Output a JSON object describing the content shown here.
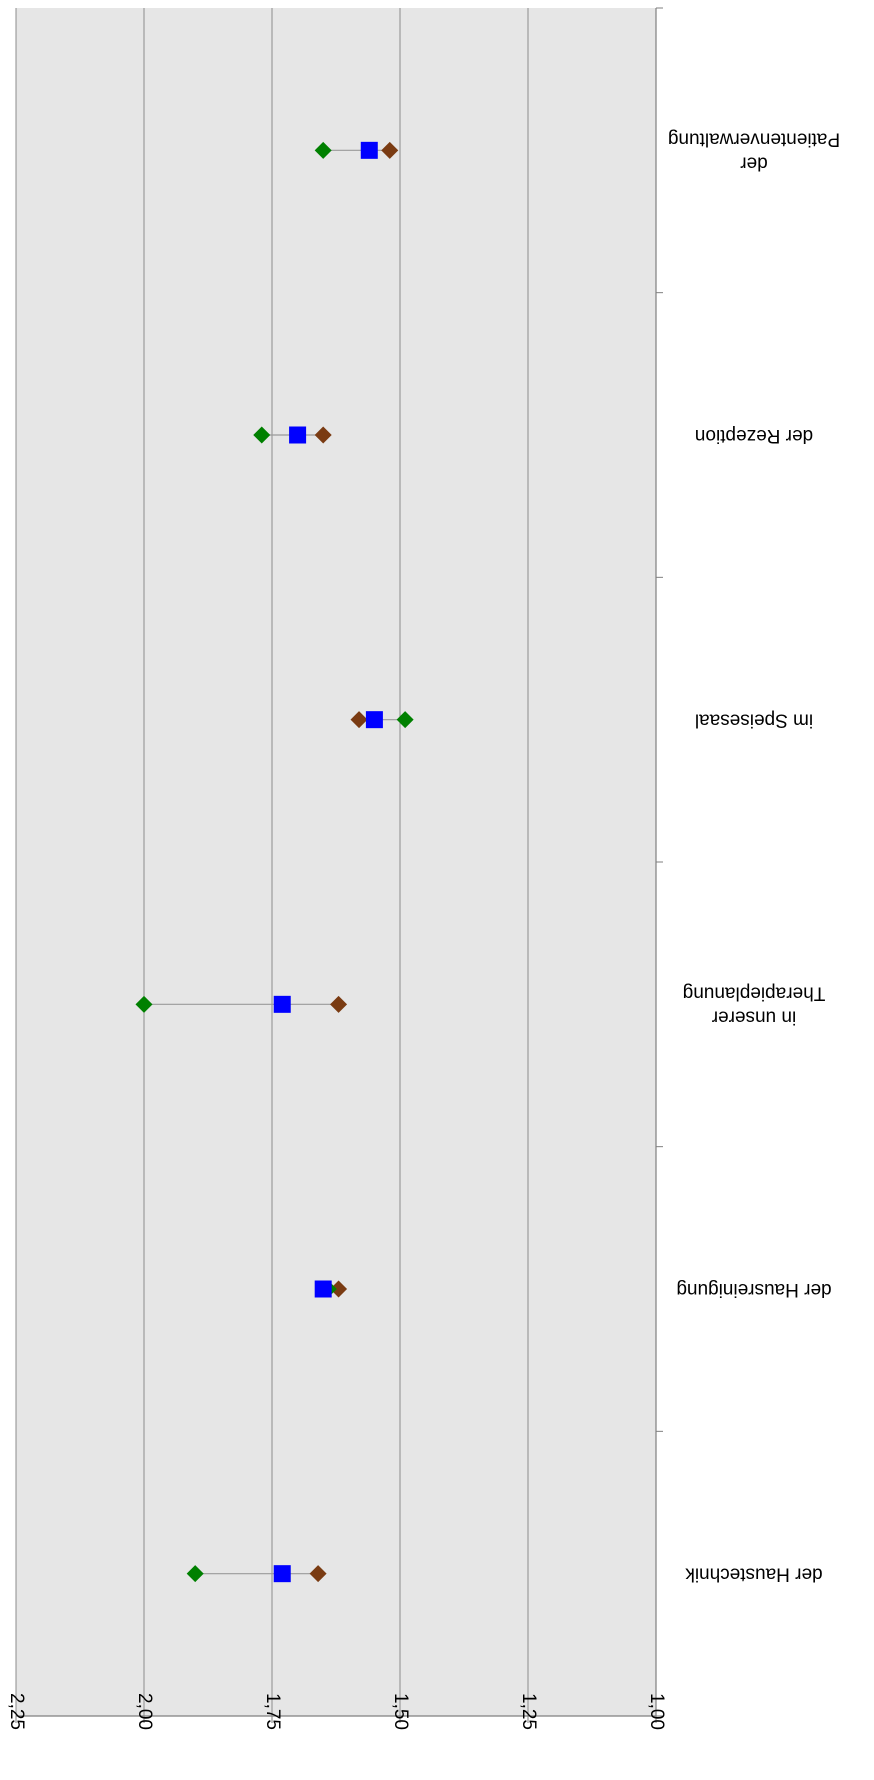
{
  "chart_data": {
    "type": "scatter",
    "orientation": "rotated-180",
    "title": "",
    "xlabel": "",
    "ylabel": "",
    "ylim": [
      1.0,
      2.25
    ],
    "grid": true,
    "y_ticks": [
      "1,00",
      "1,25",
      "1,50",
      "1,75",
      "2,00",
      "2,25"
    ],
    "y_tick_values": [
      1.0,
      1.25,
      1.5,
      1.75,
      2.0,
      2.25
    ],
    "categories": [
      [
        "der",
        "Patientenverwaltung"
      ],
      [
        "der Rezeption"
      ],
      [
        "im Speisesaal"
      ],
      [
        "in unserer",
        "Therapieplanung"
      ],
      [
        "der Hausreinigung"
      ],
      [
        "der Haustechnik"
      ]
    ],
    "series": [
      {
        "color": "#0000ff",
        "marker": "square",
        "values": [
          1.56,
          1.7,
          1.55,
          1.73,
          1.65,
          1.73
        ]
      },
      {
        "color": "#008000",
        "marker": "diamond",
        "values": [
          1.65,
          1.77,
          1.49,
          2.0,
          1.64,
          1.9
        ]
      },
      {
        "color": "#7a3b12",
        "marker": "diamond",
        "values": [
          1.52,
          1.65,
          1.58,
          1.62,
          1.62,
          1.66
        ]
      }
    ],
    "colors": {
      "plot_background": "#e6e6e6",
      "gridline": "#8c8c8c",
      "range_line": "#9a9a9a",
      "axis": "#7f7f7f"
    }
  }
}
